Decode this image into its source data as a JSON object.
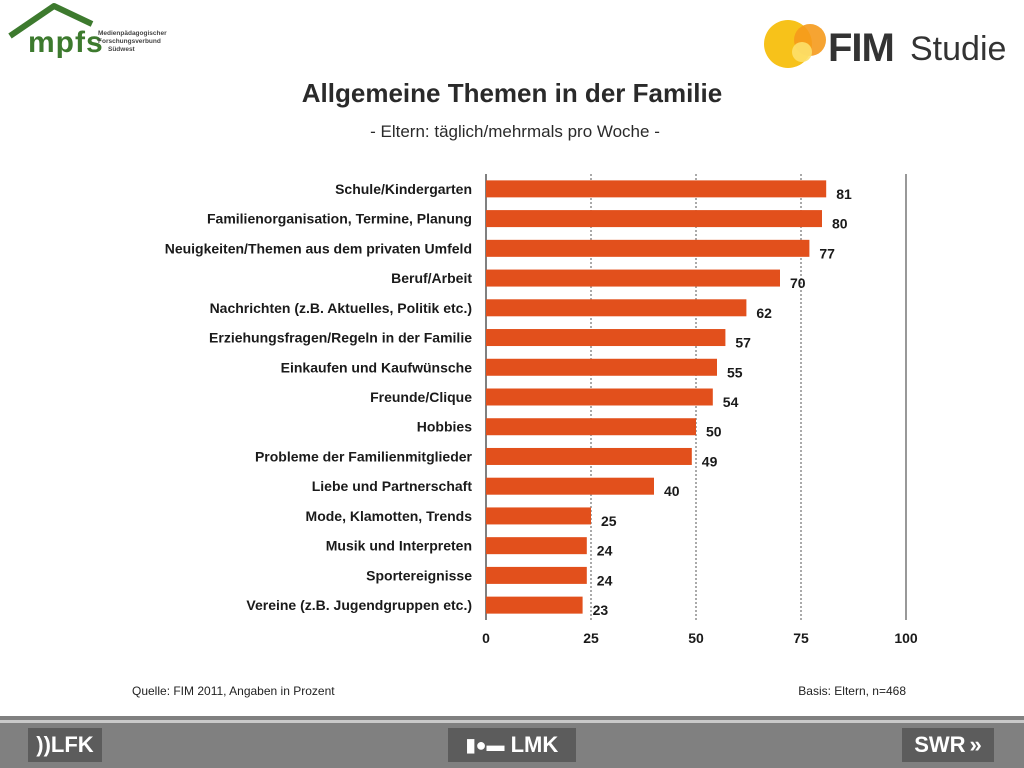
{
  "logos": {
    "mpfs": {
      "brand": "mpfs",
      "sub": [
        "Medienpädagogischer",
        "Forschungsverbund",
        "Südwest"
      ]
    },
    "fim": {
      "fim": "FIM",
      "studie": "Studie"
    },
    "footer": {
      "lfk": "))LFK",
      "lmk": "LMK",
      "swr": "SWR"
    }
  },
  "title": "Allgemeine Themen in der Familie",
  "subtitle": "- Eltern: täglich/mehrmals pro Woche -",
  "footer": {
    "source": "Quelle: FIM 2011,  Angaben in Prozent",
    "basis": "Basis: Eltern, n=468"
  },
  "colors": {
    "bar": "#e2501c",
    "grid": "#555555"
  },
  "chart_data": {
    "type": "bar",
    "orientation": "horizontal",
    "categories": [
      "Schule/Kindergarten",
      "Familienorganisation, Termine, Planung",
      "Neuigkeiten/Themen aus dem privaten Umfeld",
      "Beruf/Arbeit",
      "Nachrichten (z.B. Aktuelles, Politik etc.)",
      "Erziehungsfragen/Regeln in der Familie",
      "Einkaufen und Kaufwünsche",
      "Freunde/Clique",
      "Hobbies",
      "Probleme der Familienmitglieder",
      "Liebe und Partnerschaft",
      "Mode, Klamotten, Trends",
      "Musik und Interpreten",
      "Sportereignisse",
      "Vereine (z.B. Jugendgruppen etc.)"
    ],
    "values": [
      81,
      80,
      77,
      70,
      62,
      57,
      55,
      54,
      50,
      49,
      40,
      25,
      24,
      24,
      23
    ],
    "xlim": [
      0,
      100
    ],
    "xticks": [
      0,
      25,
      50,
      75,
      100
    ],
    "gridlines": "dotted at 25, 50, 75; solid at 100",
    "data_labels": true
  }
}
